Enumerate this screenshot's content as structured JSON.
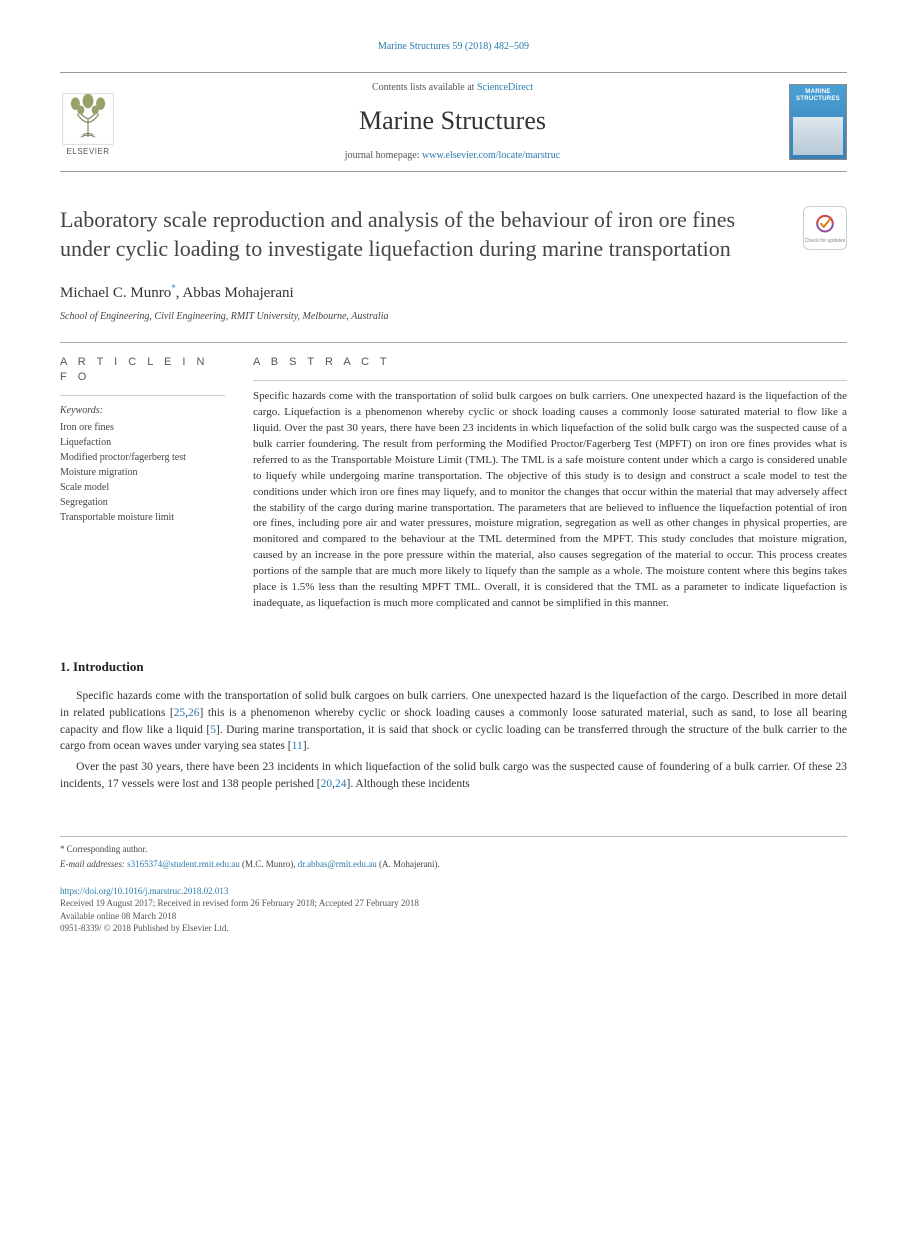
{
  "top_citation": "Marine Structures 59 (2018) 482–509",
  "header": {
    "contents_prefix": "Contents lists available at ",
    "contents_link": "ScienceDirect",
    "journal_name": "Marine Structures",
    "homepage_prefix": "journal homepage: ",
    "homepage_link": "www.elsevier.com/locate/marstruc",
    "publisher_logo_text": "ELSEVIER",
    "cover_label": "MARINE STRUCTURES"
  },
  "check_badge": {
    "text": "Check for updates",
    "colors": {
      "ring": "#8a4b9e",
      "arc": "#d34b4b",
      "tick": "#e07b00"
    }
  },
  "title": "Laboratory scale reproduction and analysis of the behaviour of iron ore fines under cyclic loading to investigate liquefaction during marine transportation",
  "authors_html": "Michael C. Munro<sup>*</sup>, Abbas Mohajerani",
  "authors": [
    {
      "name": "Michael C. Munro",
      "marker": "*"
    },
    {
      "name": "Abbas Mohajerani",
      "marker": ""
    }
  ],
  "affiliation": "School of Engineering, Civil Engineering, RMIT University, Melbourne, Australia",
  "article_info": {
    "heading": "A R T I C L E  I N F O",
    "keywords_label": "Keywords:",
    "keywords": [
      "Iron ore fines",
      "Liquefaction",
      "Modified proctor/fagerberg test",
      "Moisture migration",
      "Scale model",
      "Segregation",
      "Transportable moisture limit"
    ]
  },
  "abstract": {
    "heading": "A B S T R A C T",
    "text": "Specific hazards come with the transportation of solid bulk cargoes on bulk carriers. One unexpected hazard is the liquefaction of the cargo. Liquefaction is a phenomenon whereby cyclic or shock loading causes a commonly loose saturated material to flow like a liquid. Over the past 30 years, there have been 23 incidents in which liquefaction of the solid bulk cargo was the suspected cause of a bulk carrier foundering. The result from performing the Modified Proctor/Fagerberg Test (MPFT) on iron ore fines provides what is referred to as the Transportable Moisture Limit (TML). The TML is a safe moisture content under which a cargo is considered unable to liquefy while undergoing marine transportation. The objective of this study is to design and construct a scale model to test the conditions under which iron ore fines may liquefy, and to monitor the changes that occur within the material that may adversely affect the stability of the cargo during marine transportation. The parameters that are believed to influence the liquefaction potential of iron ore fines, including pore air and water pressures, moisture migration, segregation as well as other changes in physical properties, are monitored and compared to the behaviour at the TML determined from the MPFT. This study concludes that moisture migration, caused by an increase in the pore pressure within the material, also causes segregation of the material to occur. This process creates portions of the sample that are much more likely to liquefy than the sample as a whole. The moisture content where this begins takes place is 1.5% less than the resulting MPFT TML. Overall, it is considered that the TML as a parameter to indicate liquefaction is inadequate, as liquefaction is much more complicated and cannot be simplified in this manner."
  },
  "intro": {
    "heading": "1.  Introduction",
    "p1_pre": "Specific hazards come with the transportation of solid bulk cargoes on bulk carriers. One unexpected hazard is the liquefaction of the cargo. Described in more detail in related publications [",
    "p1_ref1": "25",
    "p1_mid1": ",",
    "p1_ref2": "26",
    "p1_mid2": "] this is a phenomenon whereby cyclic or shock loading causes a commonly loose saturated material, such as sand, to lose all bearing capacity and flow like a liquid [",
    "p1_ref3": "5",
    "p1_mid3": "]. During marine transportation, it is said that shock or cyclic loading can be transferred through the structure of the bulk carrier to the cargo from ocean waves under varying sea states [",
    "p1_ref4": "11",
    "p1_post": "].",
    "p2_pre": "Over the past 30 years, there have been 23 incidents in which liquefaction of the solid bulk cargo was the suspected cause of foundering of a bulk carrier. Of these 23 incidents, 17 vessels were lost and 138 people perished [",
    "p2_ref1": "20",
    "p2_mid1": ",",
    "p2_ref2": "24",
    "p2_post": "]. Although these incidents"
  },
  "footnotes": {
    "corr_label": "* Corresponding author.",
    "email_label": "E-mail addresses: ",
    "email1": "s3165374@student.rmit.edu.au",
    "email1_who": " (M.C. Munro), ",
    "email2": "dr.abbas@rmit.edu.au",
    "email2_who": " (A. Mohajerani)."
  },
  "doi": {
    "link": "https://doi.org/10.1016/j.marstruc.2018.02.013",
    "history": "Received 19 August 2017; Received in revised form 26 February 2018; Accepted 27 February 2018",
    "online": "Available online 08 March 2018",
    "issn": "0951-8339/ © 2018 Published by Elsevier Ltd."
  },
  "colors": {
    "link": "#2a7ab0",
    "text": "#333333",
    "rule": "#aaaaaa",
    "elsevier_orange": "#e9711c"
  }
}
